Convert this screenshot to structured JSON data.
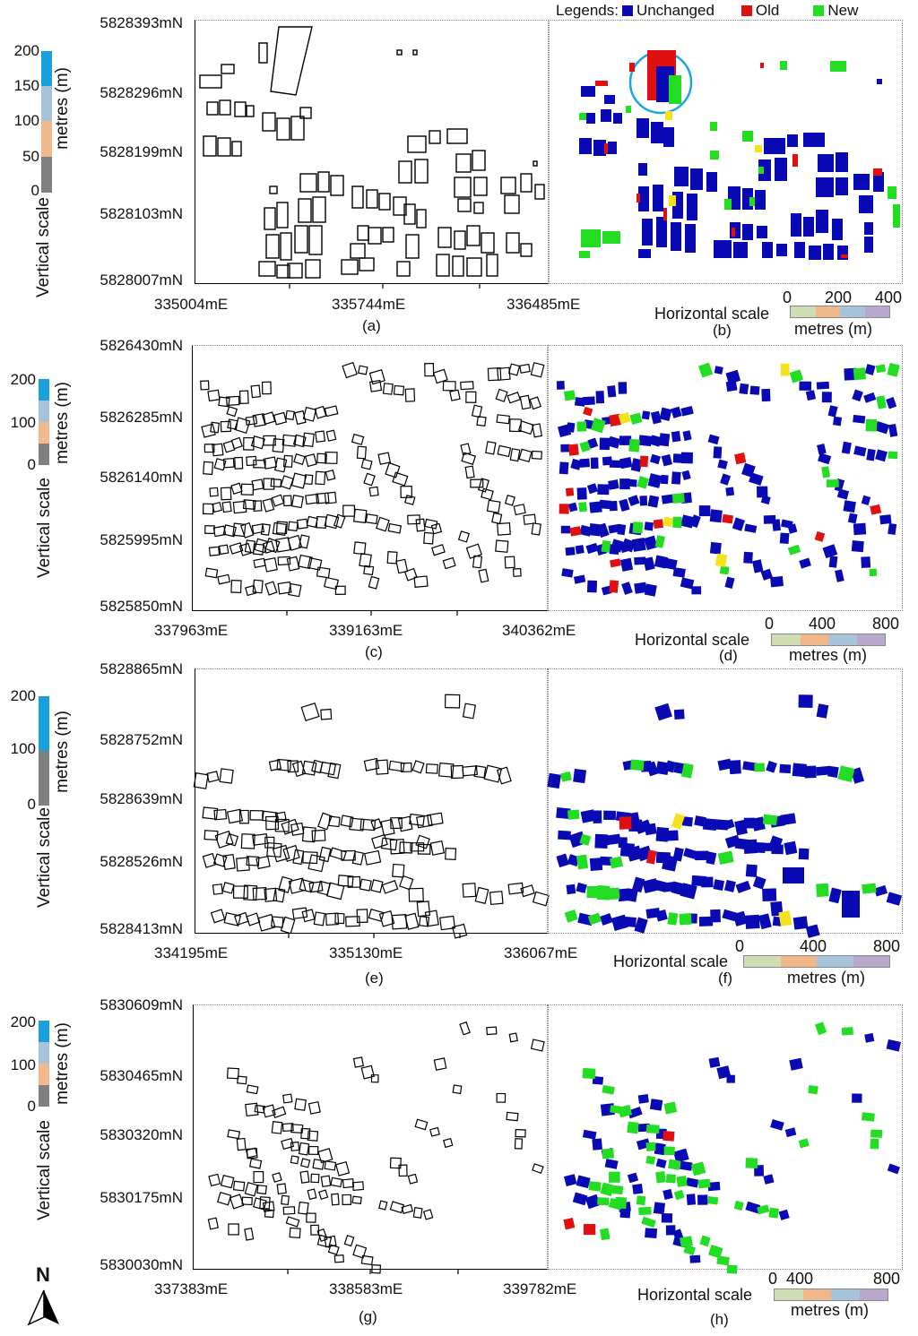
{
  "legend": {
    "title": "Legends:",
    "items": [
      {
        "label": "Unchanged",
        "color": "#0a0ab4"
      },
      {
        "label": "Old",
        "color": "#e01010"
      },
      {
        "label": "New",
        "color": "#22dd22"
      }
    ]
  },
  "colors": {
    "outline": "#000000",
    "yellow": "#f5e21a",
    "circle": "#1aa6e0",
    "vs_blue": "#1aa0dc",
    "vs_lightblue": "#a7c3dc",
    "vs_orange": "#f2b98e",
    "vs_grey": "#808080",
    "hs_green": "#cfdcb4",
    "hs_orange": "#f0b888",
    "hs_blue": "#a8c4dc",
    "hs_purple": "#b8a8cc"
  },
  "vertical_scale_label": "Vertical scale",
  "metres_label": "metres (m)",
  "horizontal_scale_label": "Horizontal scale",
  "north_label": "N",
  "panels": [
    {
      "id": "a-b",
      "vs_ticks": [
        "200",
        "150",
        "100",
        "50",
        "0"
      ],
      "ylabels": [
        "5828393mN",
        "5828296mN",
        "5828199mN",
        "5828103mN",
        "5828007mN"
      ],
      "xlabels": [
        "335004mE",
        "335744mE",
        "336485mE"
      ],
      "left_caption": "(a)",
      "right_caption": "(b)",
      "hs_ticks": [
        "0",
        "200",
        "400"
      ]
    },
    {
      "id": "c-d",
      "vs_ticks": [
        "200",
        "100",
        "0"
      ],
      "ylabels": [
        "5826430mN",
        "5826285mN",
        "5826140mN",
        "5825995mN",
        "5825850mN"
      ],
      "xlabels": [
        "337963mE",
        "339163mE",
        "340362mE"
      ],
      "left_caption": "(c)",
      "right_caption": "(d)",
      "hs_ticks": [
        "0",
        "400",
        "800"
      ]
    },
    {
      "id": "e-f",
      "vs_ticks": [
        "200",
        "100",
        "0"
      ],
      "ylabels": [
        "5828865mN",
        "5828752mN",
        "5828639mN",
        "5828526mN",
        "5828413mN"
      ],
      "xlabels": [
        "334195mE",
        "335130mE",
        "336067mE"
      ],
      "left_caption": "(e)",
      "right_caption": "(f)",
      "hs_ticks": [
        "0",
        "400",
        "800"
      ]
    },
    {
      "id": "g-h",
      "vs_ticks": [
        "200",
        "100",
        "0"
      ],
      "ylabels": [
        "5830609mN",
        "5830465mN",
        "5830320mN",
        "5830175mN",
        "5830030mN"
      ],
      "xlabels": [
        "337383mE",
        "338583mE",
        "339782mE"
      ],
      "left_caption": "(g)",
      "right_caption": "(h)",
      "hs_ticks": [
        "0",
        "400",
        "800"
      ]
    }
  ]
}
